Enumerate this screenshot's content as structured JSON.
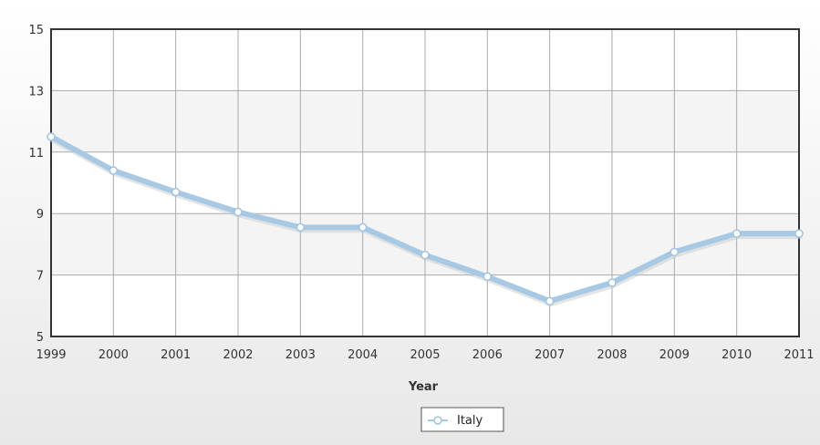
{
  "chart_data": {
    "type": "line",
    "title": "",
    "xlabel": "Year",
    "ylabel": "",
    "x": [
      "1999",
      "2000",
      "2001",
      "2002",
      "2003",
      "2004",
      "2005",
      "2006",
      "2007",
      "2008",
      "2009",
      "2010",
      "2011"
    ],
    "series": [
      {
        "name": "Italy",
        "values": [
          11.5,
          10.4,
          9.7,
          9.05,
          8.55,
          8.55,
          7.65,
          6.95,
          6.15,
          6.75,
          7.75,
          8.35,
          8.35
        ]
      }
    ],
    "ylim": [
      5,
      15
    ],
    "yticks": [
      "5",
      "7",
      "9",
      "11",
      "13",
      "15"
    ],
    "grid": true,
    "legend": "bottom-center",
    "colors": {
      "line": "#a8c9e4",
      "marker_fill": "#ffffff",
      "marker_stroke": "#9ec3e2",
      "plot_border": "#333333",
      "grid": "#aaaaaa",
      "band": "#f4f4f4",
      "background_top": "#ffffff",
      "background_bottom": "#e8e8e8"
    }
  }
}
